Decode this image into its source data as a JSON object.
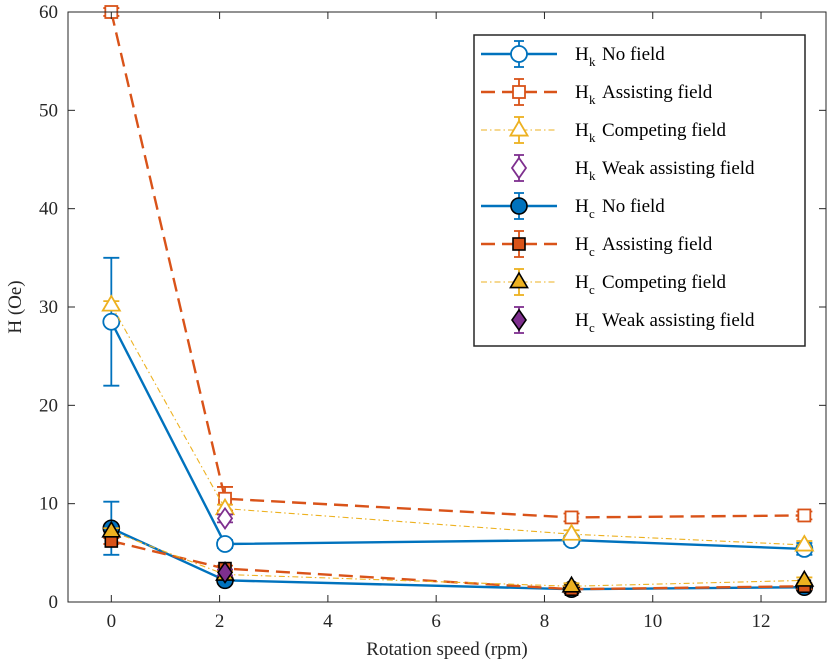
{
  "colors": {
    "blue": "#0072BD",
    "orange": "#D95319",
    "yellow": "#EDB120",
    "purple": "#7E2F8E",
    "axis": "#262626"
  },
  "chart_data": {
    "type": "line",
    "title": "",
    "xlabel": "Rotation speed (rpm)",
    "ylabel": "H (Oe)",
    "xlim": [
      -0.8,
      13.2
    ],
    "ylim": [
      0,
      60
    ],
    "xticks": [
      0,
      2,
      4,
      6,
      8,
      10,
      12
    ],
    "yticks": [
      0,
      10,
      20,
      30,
      40,
      50,
      60
    ],
    "grid": false,
    "legend_position": "top-right",
    "series": [
      {
        "id": "hk-no-field",
        "main": "H",
        "sub": "k",
        "label": "No field",
        "color_key": "blue",
        "dash": "solid",
        "marker": "circle",
        "filled": false,
        "x": [
          0,
          2.1,
          8.5,
          12.8
        ],
        "y": [
          28.5,
          5.9,
          6.3,
          5.4
        ],
        "err": [
          6.5,
          0.4,
          0.4,
          0.6
        ]
      },
      {
        "id": "hk-assisting",
        "main": "H",
        "sub": "k",
        "label": "Assisting field",
        "color_key": "orange",
        "dash": "dashed",
        "marker": "square",
        "filled": false,
        "x": [
          0,
          2.1,
          8.5,
          12.8
        ],
        "y": [
          60,
          10.5,
          8.6,
          8.8
        ],
        "err": [
          0.4,
          1.2,
          0.4,
          0.4
        ]
      },
      {
        "id": "hk-competing",
        "main": "H",
        "sub": "k",
        "label": "Competing field",
        "color_key": "yellow",
        "dash": "dashdot",
        "marker": "triangle",
        "filled": false,
        "x": [
          0,
          2.1,
          8.5,
          12.8
        ],
        "y": [
          30.2,
          9.5,
          6.9,
          5.8
        ],
        "err": [
          0.4,
          0.4,
          0.4,
          0.4
        ]
      },
      {
        "id": "hk-weak",
        "main": "H",
        "sub": "k",
        "label": "Weak assisting field",
        "color_key": "purple",
        "dash": "none",
        "marker": "diamond",
        "filled": false,
        "x": [
          2.1
        ],
        "y": [
          8.5
        ],
        "err": [
          0.4
        ]
      },
      {
        "id": "hc-no-field",
        "main": "H",
        "sub": "c",
        "label": "No field",
        "color_key": "blue",
        "dash": "solid",
        "marker": "circle",
        "filled": true,
        "x": [
          0,
          2.1,
          8.5,
          12.8
        ],
        "y": [
          7.5,
          2.2,
          1.3,
          1.5
        ],
        "err": [
          2.7,
          0.3,
          0.3,
          0.3
        ]
      },
      {
        "id": "hc-assisting",
        "main": "H",
        "sub": "c",
        "label": "Assisting field",
        "color_key": "orange",
        "dash": "dashed",
        "marker": "square",
        "filled": true,
        "x": [
          0,
          2.1,
          8.5,
          12.8
        ],
        "y": [
          6.2,
          3.4,
          1.3,
          1.6
        ],
        "err": [
          0.3,
          0.3,
          0.3,
          0.3
        ]
      },
      {
        "id": "hc-competing",
        "main": "H",
        "sub": "c",
        "label": "Competing field",
        "color_key": "yellow",
        "dash": "dashdot",
        "marker": "triangle",
        "filled": true,
        "x": [
          0,
          2.1,
          8.5,
          12.8
        ],
        "y": [
          7.2,
          2.8,
          1.6,
          2.2
        ],
        "err": [
          0.3,
          0.3,
          0.3,
          0.3
        ]
      },
      {
        "id": "hc-weak",
        "main": "H",
        "sub": "c",
        "label": "Weak assisting field",
        "color_key": "purple",
        "dash": "none",
        "marker": "diamond",
        "filled": true,
        "x": [
          2.1
        ],
        "y": [
          3.0
        ],
        "err": [
          0.3
        ]
      }
    ]
  }
}
